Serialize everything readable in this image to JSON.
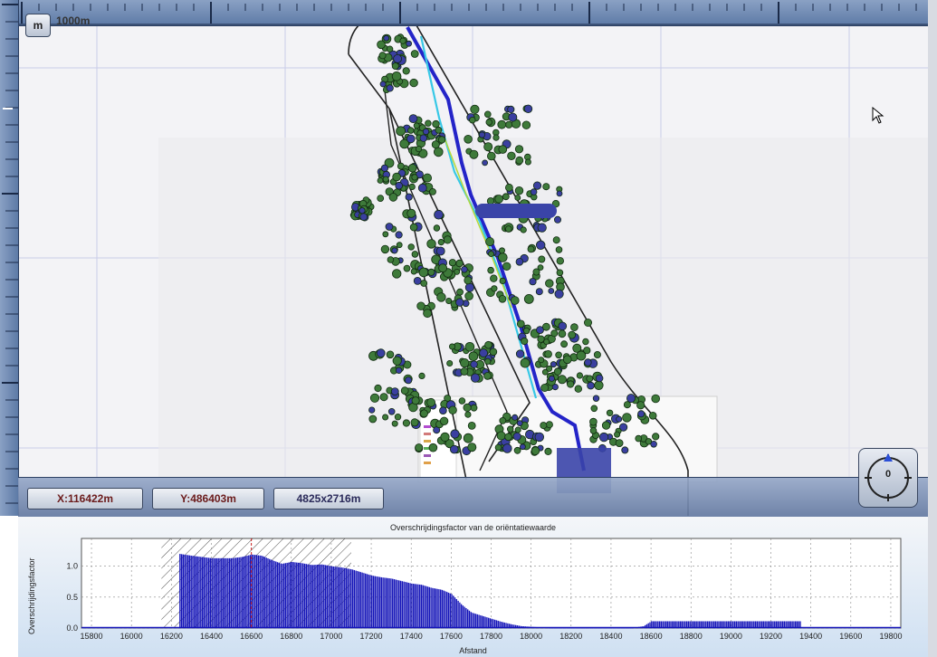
{
  "map": {
    "unit_button": "m",
    "scale_label": "1000m",
    "status": {
      "x": "X:116422m",
      "y": "Y:486403m",
      "extent": "4825x2716m"
    },
    "compass": {
      "label": "0"
    }
  },
  "chart": {
    "title": "Overschrijdingsfactor van de oriëntatiewaarde",
    "ylabel": "Overschrijdingsfactor",
    "xlabel": "Afstand"
  },
  "colors": {
    "bar": "#1414b8",
    "ruler": "#6f88b2",
    "accent_red": "#cc2222"
  },
  "chart_data": {
    "type": "bar",
    "title": "Overschrijdingsfactor van de oriëntatiewaarde",
    "xlabel": "Afstand",
    "ylabel": "Overschrijdingsfactor",
    "xlim": [
      15750,
      19850
    ],
    "ylim": [
      0,
      1.45
    ],
    "x_ticks": [
      15800,
      16000,
      16200,
      16400,
      16600,
      16800,
      17000,
      17200,
      17400,
      17600,
      17800,
      18000,
      18200,
      18400,
      18600,
      18800,
      19000,
      19200,
      19400,
      19600,
      19800
    ],
    "y_ticks": [
      0.0,
      0.5,
      1.0
    ],
    "y_tick_labels": [
      "0.0",
      "0.5",
      "1.0"
    ],
    "hatched_range": [
      16150,
      17100
    ],
    "marker_x": 16600,
    "grid": true,
    "profile": [
      [
        16240,
        1.2
      ],
      [
        16300,
        1.17
      ],
      [
        16350,
        1.15
      ],
      [
        16400,
        1.13
      ],
      [
        16450,
        1.13
      ],
      [
        16500,
        1.13
      ],
      [
        16550,
        1.15
      ],
      [
        16600,
        1.19
      ],
      [
        16650,
        1.17
      ],
      [
        16700,
        1.1
      ],
      [
        16750,
        1.04
      ],
      [
        16800,
        1.07
      ],
      [
        16850,
        1.05
      ],
      [
        16900,
        1.02
      ],
      [
        16950,
        1.03
      ],
      [
        17000,
        1.0
      ],
      [
        17050,
        0.98
      ],
      [
        17100,
        0.95
      ],
      [
        17150,
        0.9
      ],
      [
        17200,
        0.85
      ],
      [
        17250,
        0.82
      ],
      [
        17300,
        0.8
      ],
      [
        17350,
        0.76
      ],
      [
        17400,
        0.72
      ],
      [
        17450,
        0.7
      ],
      [
        17500,
        0.65
      ],
      [
        17550,
        0.62
      ],
      [
        17600,
        0.55
      ],
      [
        17650,
        0.38
      ],
      [
        17700,
        0.25
      ],
      [
        17750,
        0.2
      ],
      [
        17800,
        0.15
      ],
      [
        17850,
        0.1
      ],
      [
        17900,
        0.06
      ],
      [
        17950,
        0.03
      ],
      [
        18000,
        0.02
      ],
      [
        18050,
        0.01
      ],
      [
        18100,
        0.0
      ],
      [
        18500,
        0.0
      ],
      [
        18560,
        0.03
      ],
      [
        18600,
        0.11
      ],
      [
        18700,
        0.11
      ],
      [
        18800,
        0.11
      ],
      [
        18900,
        0.11
      ],
      [
        19000,
        0.11
      ],
      [
        19100,
        0.11
      ],
      [
        19200,
        0.11
      ],
      [
        19300,
        0.11
      ],
      [
        19350,
        0.11
      ],
      [
        19360,
        0.0
      ],
      [
        19800,
        0.0
      ]
    ]
  }
}
